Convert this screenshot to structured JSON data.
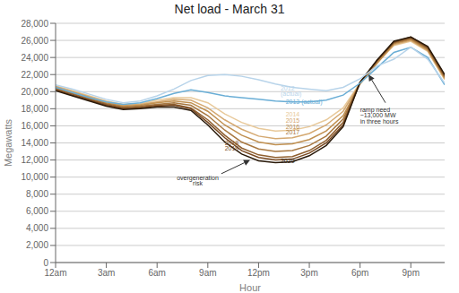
{
  "chart_data": {
    "type": "line",
    "title": "Net load - March 31",
    "x_label": "Hour",
    "y_label": "Megawatts",
    "x": [
      0,
      1,
      2,
      3,
      4,
      5,
      6,
      7,
      8,
      9,
      10,
      11,
      12,
      13,
      14,
      15,
      16,
      17,
      18,
      19,
      20,
      21,
      22,
      23
    ],
    "xlim": [
      0,
      23
    ],
    "xticks": [
      {
        "value": 0,
        "label": "12am"
      },
      {
        "value": 3,
        "label": "3am"
      },
      {
        "value": 6,
        "label": "6am"
      },
      {
        "value": 9,
        "label": "9am"
      },
      {
        "value": 12,
        "label": "12pm"
      },
      {
        "value": 15,
        "label": "3pm"
      },
      {
        "value": 18,
        "label": "6pm"
      },
      {
        "value": 21,
        "label": "9pm"
      }
    ],
    "ylim": [
      0,
      28000
    ],
    "yticks": [
      0,
      {
        "value": 2000,
        "label": "2,000"
      },
      {
        "value": 4000,
        "label": "4,000"
      },
      {
        "value": 6000,
        "label": "6,000"
      },
      {
        "value": 8000,
        "label": "8,000"
      },
      {
        "value": 10000,
        "label": "10,000"
      },
      {
        "value": 12000,
        "label": "12,000"
      },
      {
        "value": 14000,
        "label": "14,000"
      },
      {
        "value": 16000,
        "label": "16,000"
      },
      {
        "value": 18000,
        "label": "18,000"
      },
      {
        "value": 20000,
        "label": "20,000"
      },
      {
        "value": 22000,
        "label": "22,000"
      },
      {
        "value": 24000,
        "label": "24,000"
      },
      {
        "value": 26000,
        "label": "26,000"
      },
      {
        "value": 28000,
        "label": "28,000"
      }
    ],
    "grid": "y",
    "series": [
      {
        "name": "2014",
        "color": "#e8c99a",
        "values": [
          20700,
          20100,
          19500,
          18900,
          18500,
          18600,
          19000,
          19300,
          19300,
          18700,
          17400,
          16400,
          15700,
          15400,
          15500,
          15900,
          16700,
          18100,
          21000,
          23400,
          25400,
          25900,
          24700,
          21400
        ]
      },
      {
        "name": "2015",
        "color": "#d4a870",
        "values": [
          20600,
          20000,
          19400,
          18800,
          18400,
          18500,
          18800,
          19100,
          19000,
          18100,
          16700,
          15600,
          14800,
          14500,
          14600,
          15100,
          16100,
          17700,
          21000,
          23400,
          25500,
          26000,
          24800,
          21500
        ]
      },
      {
        "name": "2016",
        "color": "#c09050",
        "values": [
          20500,
          19900,
          19300,
          18700,
          18300,
          18400,
          18700,
          18900,
          18700,
          17700,
          16100,
          14900,
          14100,
          13800,
          13900,
          14400,
          15400,
          17200,
          20900,
          23300,
          25600,
          26100,
          24900,
          21600
        ]
      },
      {
        "name": "2017",
        "color": "#a87840",
        "values": [
          20400,
          19800,
          19200,
          18600,
          18200,
          18300,
          18500,
          18700,
          18400,
          17200,
          15500,
          14100,
          13300,
          13000,
          13100,
          13700,
          14800,
          16800,
          21100,
          23600,
          25700,
          26200,
          25000,
          21700
        ]
      },
      {
        "name": "2018",
        "color": "#906030",
        "values": [
          20300,
          19700,
          19100,
          18500,
          18100,
          18200,
          18400,
          18500,
          18100,
          16700,
          14900,
          13400,
          12600,
          12300,
          12400,
          13100,
          14300,
          16400,
          21100,
          23600,
          25800,
          26300,
          25100,
          21800
        ]
      },
      {
        "name": "2019",
        "color": "#784820",
        "values": [
          20200,
          19600,
          19000,
          18400,
          18000,
          18100,
          18300,
          18400,
          18000,
          16400,
          14600,
          13100,
          12300,
          12000,
          12100,
          12800,
          14000,
          16100,
          21100,
          23600,
          25800,
          26400,
          25200,
          21900
        ]
      },
      {
        "name": "2020",
        "color": "#2a1a0a",
        "values": [
          20100,
          19500,
          18900,
          18300,
          17900,
          18000,
          18200,
          18200,
          17800,
          16100,
          14100,
          12700,
          11900,
          11700,
          11800,
          12500,
          13700,
          15900,
          21100,
          23700,
          25900,
          26400,
          25300,
          22000
        ]
      },
      {
        "name": "2013",
        "color": "#6aaed6",
        "values": [
          20500,
          19900,
          19300,
          18800,
          18500,
          18700,
          19200,
          19800,
          20200,
          19900,
          19500,
          19300,
          19100,
          18900,
          18800,
          18800,
          19000,
          19600,
          21000,
          22800,
          24600,
          25200,
          24000,
          20800
        ]
      },
      {
        "name": "2012",
        "color": "#b8d4ea",
        "values": [
          20800,
          20300,
          19700,
          19100,
          18700,
          18900,
          19500,
          20300,
          21300,
          21900,
          22000,
          21800,
          21400,
          20900,
          20500,
          20300,
          20100,
          20500,
          21500,
          23000,
          23800,
          25200,
          23800,
          21000
        ]
      }
    ],
    "annotations": [
      {
        "text": "2012",
        "x": 13.3,
        "y": 20700,
        "color": "#b8d4ea"
      },
      {
        "text": "(actual)",
        "x": 13.3,
        "y": 20100,
        "color": "#b8d4ea"
      },
      {
        "text": "2013 (actual)",
        "x": 13.6,
        "y": 19100,
        "color": "#6aaed6"
      },
      {
        "text": "2014",
        "x": 13.6,
        "y": 17600,
        "color": "#e8c99a"
      },
      {
        "text": "2015",
        "x": 13.6,
        "y": 16900,
        "color": "#d4a870"
      },
      {
        "text": "2016",
        "x": 13.6,
        "y": 16200,
        "color": "#c09050"
      },
      {
        "text": "2017",
        "x": 13.6,
        "y": 15500,
        "color": "#a87840"
      },
      {
        "text": "2018",
        "x": 10.0,
        "y": 14300,
        "color": "#906030"
      },
      {
        "text": "2019",
        "x": 10.0,
        "y": 13700,
        "color": "#784820"
      },
      {
        "text": "2020",
        "x": 13.3,
        "y": 12200,
        "color": "#2a1a0a"
      },
      {
        "text": "overgeneration",
        "x": 8.4,
        "y": 10200,
        "color": "#333333",
        "align": "center"
      },
      {
        "text": "risk",
        "x": 8.4,
        "y": 9600,
        "color": "#333333",
        "align": "center"
      },
      {
        "text": "ramp need",
        "x": 18.0,
        "y": 18200,
        "color": "#333333"
      },
      {
        "text": "~13,000 MW",
        "x": 18.0,
        "y": 17500,
        "color": "#333333"
      },
      {
        "text": "in three hours",
        "x": 18.0,
        "y": 16800,
        "color": "#333333"
      }
    ],
    "arrows": [
      {
        "from": [
          9.8,
          10400
        ],
        "to": [
          11.5,
          12000
        ],
        "color": "#333333"
      },
      {
        "from": [
          19.5,
          18700
        ],
        "to": [
          18.5,
          22000
        ],
        "color": "#333333"
      }
    ]
  }
}
